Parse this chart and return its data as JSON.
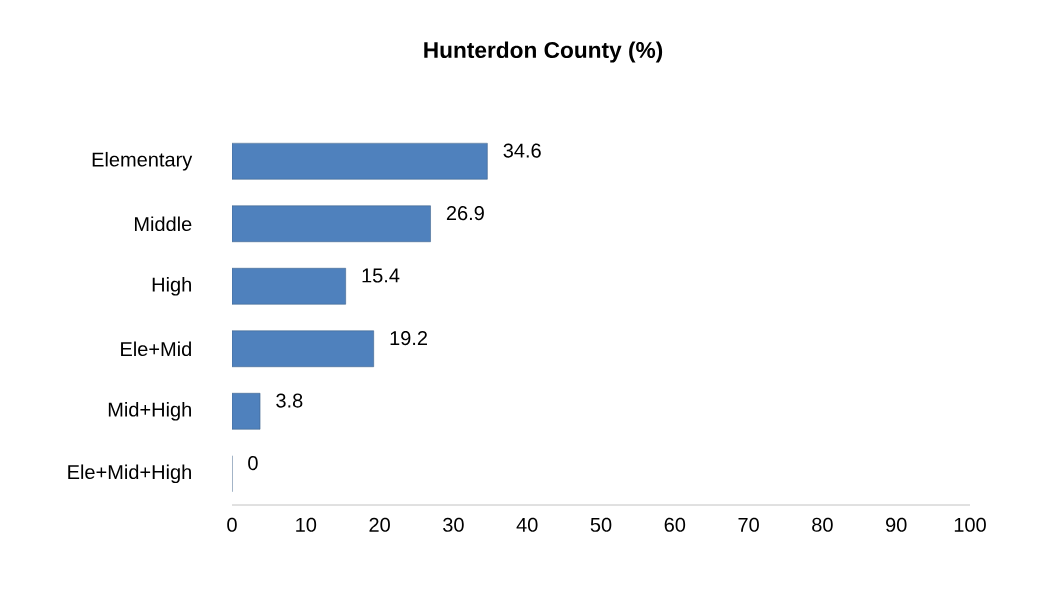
{
  "chart_data": {
    "type": "bar",
    "orientation": "horizontal",
    "title": "Hunterdon County (%)",
    "categories": [
      "Elementary",
      "Middle",
      "High",
      "Ele+Mid",
      "Mid+High",
      "Ele+Mid+High"
    ],
    "values": [
      34.6,
      26.9,
      15.4,
      19.2,
      3.8,
      0
    ],
    "color": "#4f81bd",
    "xlim": [
      0,
      100
    ],
    "xticks": [
      0,
      10,
      20,
      30,
      40,
      50,
      60,
      70,
      80,
      90,
      100
    ],
    "data_labels": true,
    "grid": false
  }
}
